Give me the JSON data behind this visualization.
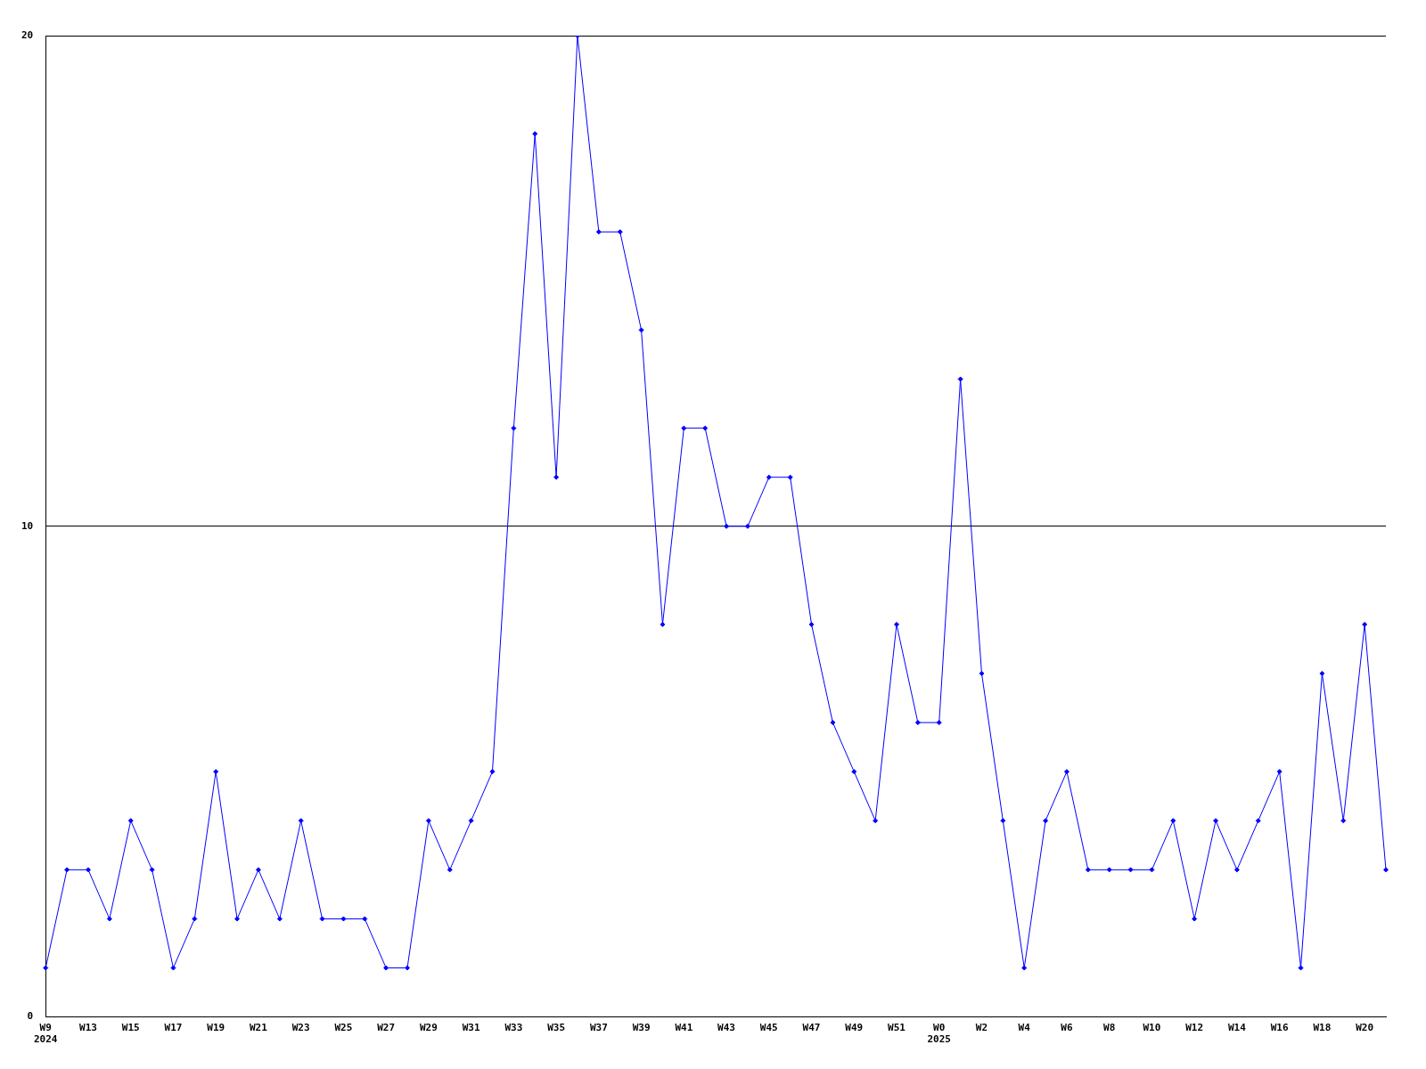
{
  "chart_data": {
    "type": "line",
    "categories": [
      "W9\n2024",
      null,
      "W13",
      null,
      "W15",
      null,
      "W17",
      null,
      "W19",
      null,
      "W21",
      null,
      "W23",
      null,
      "W25",
      null,
      "W27",
      null,
      "W29",
      null,
      "W31",
      null,
      "W33",
      null,
      "W35",
      null,
      "W37",
      null,
      "W39",
      null,
      "W41",
      null,
      "W43",
      null,
      "W45",
      null,
      "W47",
      null,
      "W49",
      null,
      "W51",
      null,
      "W0\n2025",
      null,
      "W2",
      null,
      "W4",
      null,
      "W6",
      null,
      "W8",
      null,
      "W10",
      null,
      "W12",
      null,
      "W14",
      null,
      "W16",
      null,
      "W18",
      null,
      "W20",
      null
    ],
    "series": [
      {
        "color": "#0000ff",
        "values": [
          1,
          3,
          3,
          2,
          4,
          3,
          1,
          2,
          5,
          2,
          3,
          2,
          4,
          2,
          2,
          2,
          1,
          1,
          4,
          3,
          4,
          5,
          12,
          18,
          11,
          20,
          16,
          16,
          14,
          8,
          12,
          12,
          10,
          10,
          11,
          11,
          8,
          6,
          5,
          4,
          8,
          6,
          6,
          13,
          7,
          4,
          1,
          4,
          5,
          3,
          3,
          3,
          3,
          4,
          2,
          4,
          3,
          4,
          5,
          1,
          7,
          4,
          8,
          3
        ]
      }
    ],
    "ylim": [
      0,
      20
    ],
    "yticks": [
      0,
      10,
      20
    ],
    "grid": "y",
    "legend": false,
    "marker": "diamond",
    "line_style": "solid"
  }
}
